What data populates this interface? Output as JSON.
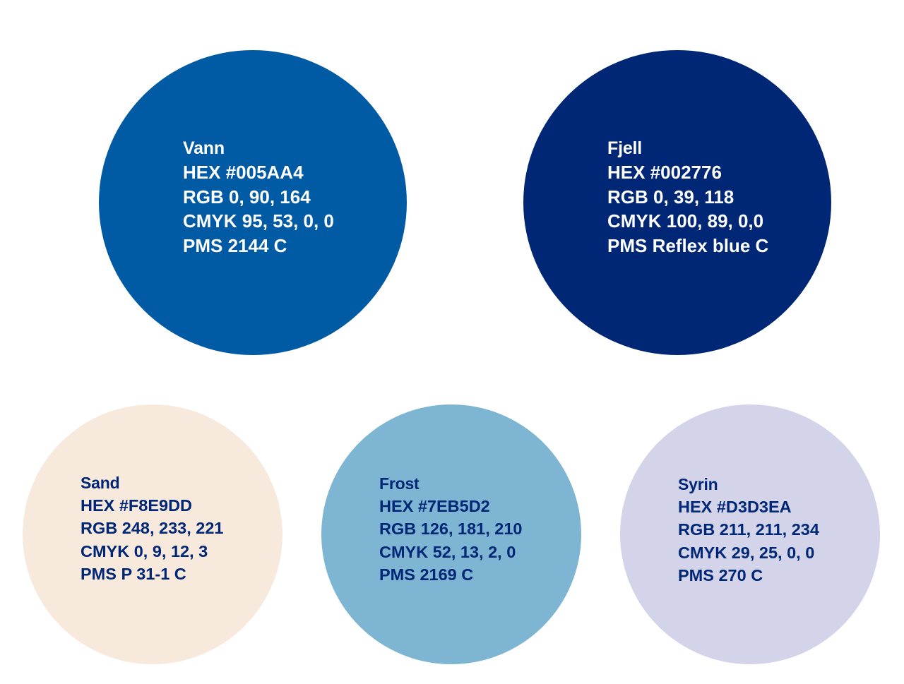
{
  "palette": {
    "primary": [
      {
        "name": "Vann",
        "hex": "HEX #005AA4",
        "rgb": "RGB 0, 90, 164",
        "cmyk": "CMYK 95, 53, 0, 0",
        "pms": "PMS 2144 C",
        "fill": "#005AA4",
        "text_color": "#ffffff"
      },
      {
        "name": "Fjell",
        "hex": "HEX #002776",
        "rgb": "RGB 0, 39, 118",
        "cmyk": "CMYK 100, 89, 0,0",
        "pms": "PMS Reflex blue C",
        "fill": "#002776",
        "text_color": "#ffffff"
      }
    ],
    "secondary": [
      {
        "name": "Sand",
        "hex": "HEX #F8E9DD",
        "rgb": "RGB 248, 233, 221",
        "cmyk": "CMYK 0, 9, 12, 3",
        "pms": "PMS P 31-1 C",
        "fill": "#F8E9DD",
        "text_color": "#002776"
      },
      {
        "name": "Frost",
        "hex": "HEX #7EB5D2",
        "rgb": "RGB 126, 181, 210",
        "cmyk": "CMYK 52, 13, 2, 0",
        "pms": "PMS 2169 C",
        "fill": "#7EB5D2",
        "text_color": "#002776"
      },
      {
        "name": "Syrin",
        "hex": "HEX #D3D3EA",
        "rgb": "RGB 211, 211, 234",
        "cmyk": "CMYK 29, 25, 0, 0",
        "pms": "PMS 270 C",
        "fill": "#D3D3EA",
        "text_color": "#002776"
      }
    ]
  }
}
